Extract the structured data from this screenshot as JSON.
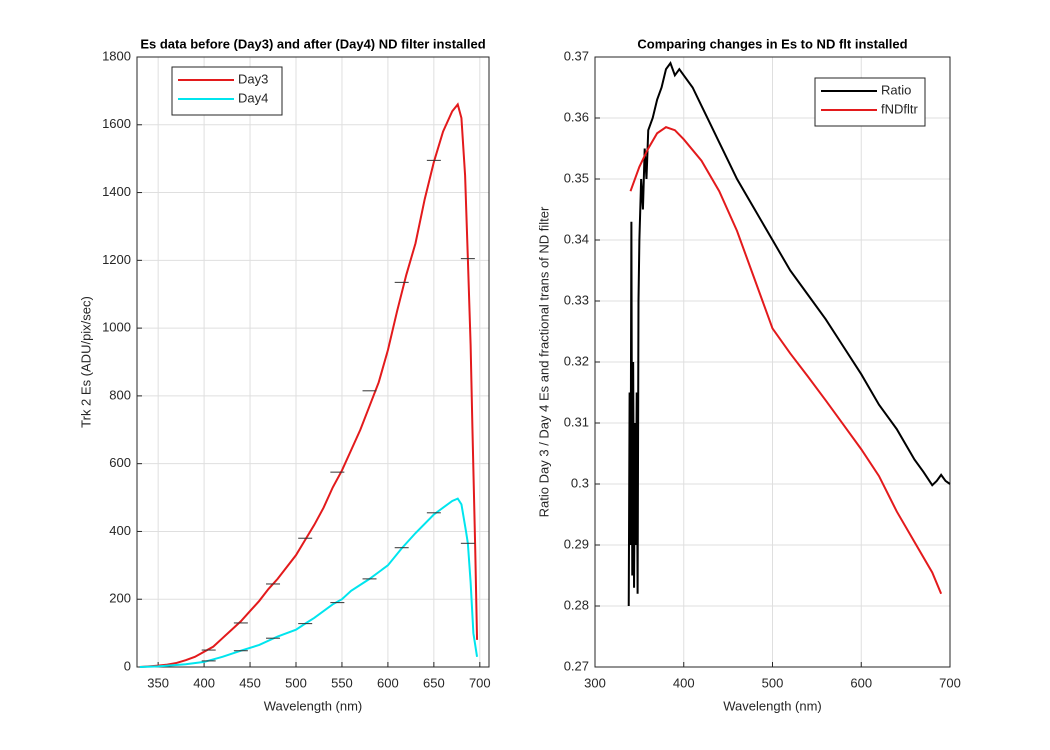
{
  "chart_data": [
    {
      "type": "line",
      "title": "Es data before (Day3) and after (Day4) ND filter installed",
      "xlabel": "Wavelength (nm)",
      "ylabel": "Trk 2 Es (ADU/pix/sec)",
      "xlim": [
        327,
        710
      ],
      "ylim": [
        0,
        1800
      ],
      "xticks": [
        350,
        400,
        450,
        500,
        550,
        600,
        650,
        700
      ],
      "yticks": [
        0,
        200,
        400,
        600,
        800,
        1000,
        1200,
        1400,
        1600,
        1800
      ],
      "grid": true,
      "legend": "northwest",
      "series": [
        {
          "name": "Day3",
          "color": "#e31a1c",
          "x": [
            330,
            340,
            350,
            360,
            370,
            380,
            390,
            400,
            410,
            420,
            430,
            440,
            450,
            460,
            470,
            480,
            490,
            500,
            510,
            520,
            530,
            540,
            550,
            560,
            570,
            580,
            590,
            600,
            610,
            620,
            630,
            640,
            650,
            660,
            670,
            676,
            680,
            684,
            687,
            690,
            692,
            695,
            697
          ],
          "values": [
            0,
            2,
            4,
            7,
            12,
            20,
            30,
            45,
            60,
            85,
            110,
            135,
            165,
            195,
            230,
            260,
            295,
            330,
            375,
            420,
            470,
            530,
            580,
            640,
            700,
            770,
            840,
            935,
            1050,
            1157,
            1250,
            1380,
            1490,
            1580,
            1640,
            1660,
            1620,
            1450,
            1205,
            950,
            700,
            350,
            80
          ],
          "markers": {
            "x": [
              405,
              440,
              475,
              510,
              545,
              580,
              615,
              650,
              687
            ],
            "values": [
              50,
              130,
              245,
              380,
              575,
              815,
              1135,
              1495,
              1205
            ]
          }
        },
        {
          "name": "Day4",
          "color": "#00e5ee",
          "x": [
            330,
            350,
            380,
            400,
            420,
            440,
            460,
            480,
            500,
            510,
            520,
            540,
            550,
            560,
            580,
            600,
            615,
            630,
            650,
            660,
            670,
            676,
            680,
            685,
            687,
            690,
            693,
            697
          ],
          "values": [
            0,
            2,
            8,
            15,
            30,
            48,
            65,
            90,
            110,
            128,
            145,
            185,
            200,
            225,
            260,
            300,
            350,
            395,
            450,
            470,
            490,
            497,
            480,
            400,
            365,
            250,
            100,
            30
          ],
          "markers": {
            "x": [
              405,
              440,
              475,
              510,
              545,
              580,
              615,
              650,
              687
            ],
            "values": [
              18,
              48,
              85,
              128,
              190,
              260,
              352,
              455,
              365
            ]
          }
        }
      ]
    },
    {
      "type": "line",
      "title": "Comparing changes in Es to ND flt installed",
      "xlabel": "Wavelength (nm)",
      "ylabel": "Ratio Day 3 / Day 4 Es  and fractional trans of ND filter",
      "xlim": [
        300,
        700
      ],
      "ylim": [
        0.27,
        0.37
      ],
      "xticks": [
        300,
        400,
        500,
        600,
        700
      ],
      "yticks": [
        0.27,
        0.28,
        0.29,
        0.3,
        0.31,
        0.32,
        0.33,
        0.34,
        0.35,
        0.36,
        0.37
      ],
      "grid": true,
      "legend": "northeast",
      "series": [
        {
          "name": "Ratio",
          "color": "#000000",
          "x": [
            338,
            339,
            340,
            341,
            342,
            343,
            344,
            345,
            346,
            347,
            348,
            349,
            350,
            352,
            354,
            356,
            358,
            360,
            365,
            370,
            375,
            380,
            385,
            390,
            395,
            400,
            410,
            420,
            430,
            440,
            450,
            460,
            480,
            500,
            520,
            540,
            560,
            580,
            600,
            620,
            640,
            660,
            670,
            680,
            685,
            690,
            695,
            700
          ],
          "values": [
            0.28,
            0.315,
            0.29,
            0.343,
            0.285,
            0.32,
            0.283,
            0.31,
            0.29,
            0.315,
            0.282,
            0.33,
            0.34,
            0.35,
            0.345,
            0.355,
            0.35,
            0.358,
            0.36,
            0.363,
            0.365,
            0.368,
            0.369,
            0.367,
            0.368,
            0.367,
            0.365,
            0.362,
            0.359,
            0.356,
            0.353,
            0.35,
            0.345,
            0.34,
            0.335,
            0.331,
            0.327,
            0.3225,
            0.318,
            0.313,
            0.309,
            0.304,
            0.302,
            0.2998,
            0.3005,
            0.3015,
            0.3005,
            0.3
          ]
        },
        {
          "name": "fNDfltr",
          "color": "#e31a1c",
          "x": [
            340,
            350,
            360,
            370,
            380,
            390,
            400,
            420,
            440,
            460,
            480,
            500,
            520,
            540,
            560,
            580,
            600,
            620,
            640,
            660,
            680,
            690
          ],
          "values": [
            0.348,
            0.352,
            0.355,
            0.3575,
            0.3585,
            0.358,
            0.3565,
            0.353,
            0.348,
            0.3415,
            0.3335,
            0.3255,
            0.3214,
            0.3176,
            0.3137,
            0.3097,
            0.3057,
            0.3013,
            0.2955,
            0.2905,
            0.2855,
            0.282
          ]
        }
      ]
    }
  ]
}
